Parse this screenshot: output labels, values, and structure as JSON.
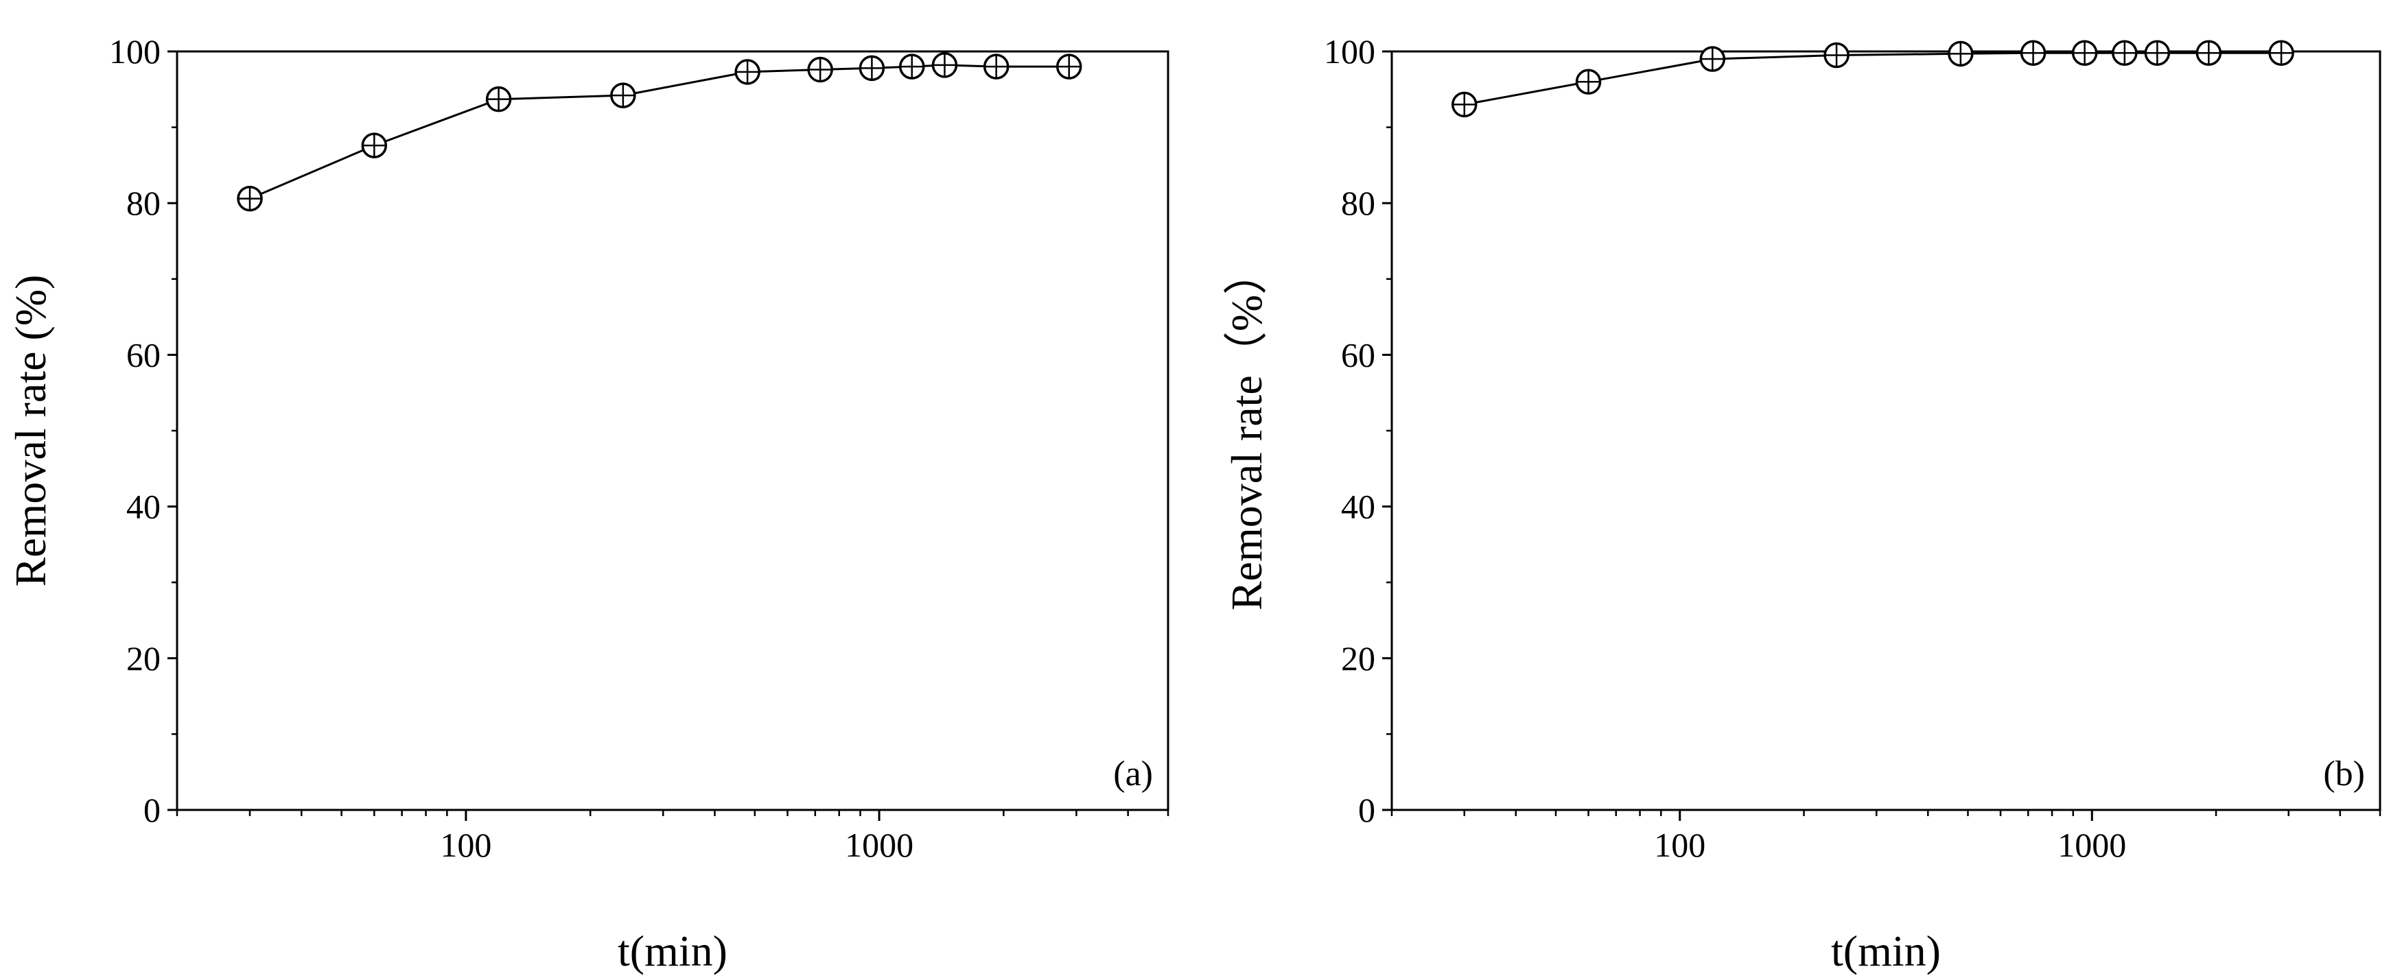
{
  "colors": {
    "line": "#000000",
    "marker_face": "#ffffff",
    "background": "#ffffff"
  },
  "chart_data": [
    {
      "type": "line",
      "panel_label": "(a)",
      "xlabel": "t(min)",
      "ylabel": "Removal rate (%)",
      "xscale": "log",
      "xlim": [
        20,
        5000
      ],
      "ylim": [
        0,
        100
      ],
      "xticks": [
        100,
        1000
      ],
      "xtick_labels": [
        "100",
        "1000"
      ],
      "yticks": [
        0,
        20,
        40,
        60,
        80,
        100
      ],
      "ytick_labels": [
        "0",
        "20",
        "40",
        "60",
        "80",
        "100"
      ],
      "marker": "circle-plus",
      "grid": false,
      "legend": "none",
      "series": [
        {
          "x": [
            30,
            60,
            120,
            240,
            480,
            720,
            960,
            1200,
            1440,
            1920,
            2880
          ],
          "y": [
            80.6,
            87.6,
            93.7,
            94.2,
            97.3,
            97.6,
            97.8,
            98.0,
            98.2,
            98.0,
            98.0
          ]
        }
      ]
    },
    {
      "type": "line",
      "panel_label": "(b)",
      "xlabel": "t(min)",
      "ylabel": "Removal rate（%）",
      "xscale": "log",
      "xlim": [
        20,
        5000
      ],
      "ylim": [
        0,
        100
      ],
      "xticks": [
        100,
        1000
      ],
      "xtick_labels": [
        "100",
        "1000"
      ],
      "yticks": [
        0,
        20,
        40,
        60,
        80,
        100
      ],
      "ytick_labels": [
        "0",
        "20",
        "40",
        "60",
        "80",
        "100"
      ],
      "marker": "circle-plus",
      "grid": false,
      "legend": "none",
      "series": [
        {
          "x": [
            30,
            60,
            120,
            240,
            480,
            720,
            960,
            1200,
            1440,
            1920,
            2880
          ],
          "y": [
            93.0,
            96.0,
            99.0,
            99.5,
            99.7,
            99.8,
            99.8,
            99.8,
            99.8,
            99.8,
            99.8
          ]
        }
      ]
    }
  ]
}
